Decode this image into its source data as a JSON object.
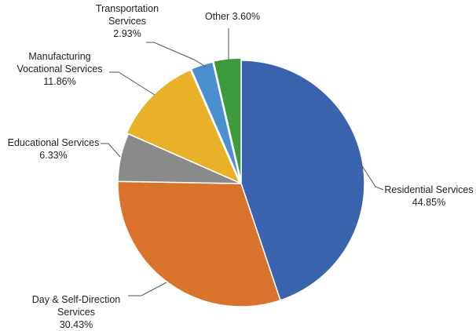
{
  "chart_data": {
    "type": "pie",
    "title": "",
    "slices": [
      {
        "name": "Residential Services",
        "value": 44.85,
        "value_label": "44.85%",
        "color": "#3a63ad"
      },
      {
        "name": "Day & Self-Direction Services",
        "value": 30.43,
        "value_label": "30.43%",
        "color": "#d9722b"
      },
      {
        "name": "Educational Services",
        "value": 6.33,
        "value_label": "6.33%",
        "color": "#8a8a8a"
      },
      {
        "name": "Manufacturing Vocational Services",
        "value": 11.86,
        "value_label": "11.86%",
        "color": "#e8b128"
      },
      {
        "name": "Transportation Services",
        "value": 2.93,
        "value_label": "2.93%",
        "color": "#4b8fcf"
      },
      {
        "name": "Other",
        "value": 3.6,
        "value_label": "3.60%",
        "color": "#3d9a3d"
      }
    ],
    "label_lines": [
      [
        "Residential Services",
        "44.85%"
      ],
      [
        "Day & Self-Direction",
        "Services",
        "30.43%"
      ],
      [
        "Educational Services",
        "6.33%"
      ],
      [
        "Manufacturing",
        "Vocational Services",
        "11.86%"
      ],
      [
        "Transportation",
        "Services",
        "2.93%"
      ],
      [
        "Other 3.60%"
      ]
    ],
    "start": "12 o'clock",
    "direction": "clockwise",
    "legend": "none (direct labels with leader lines)"
  }
}
